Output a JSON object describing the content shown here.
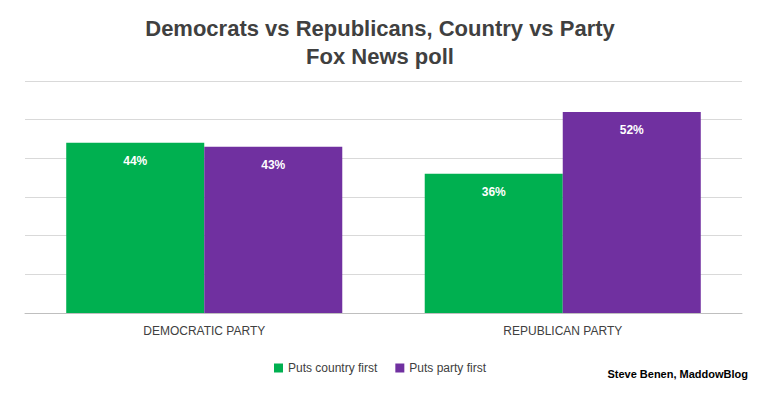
{
  "chart_data": {
    "type": "bar",
    "title": "Democrats vs Republicans, Country vs Party",
    "subtitle": "Fox News poll",
    "categories": [
      "DEMOCRATIC PARTY",
      "REPUBLICAN PARTY"
    ],
    "series": [
      {
        "name": "Puts country first",
        "color": "#00b050",
        "values": [
          44,
          36
        ],
        "value_labels": [
          "44%",
          "36%"
        ]
      },
      {
        "name": "Puts party first",
        "color": "#7030a0",
        "values": [
          43,
          52
        ],
        "value_labels": [
          "43%",
          "52%"
        ]
      }
    ],
    "ylim": [
      0,
      60
    ],
    "yticks": [
      0,
      10,
      20,
      30,
      40,
      50,
      60
    ],
    "grid": true,
    "legend": "bottom",
    "data_labels": true,
    "tick_labels": "x",
    "annotations": [
      "Steve Benen, MaddowBlog"
    ]
  }
}
